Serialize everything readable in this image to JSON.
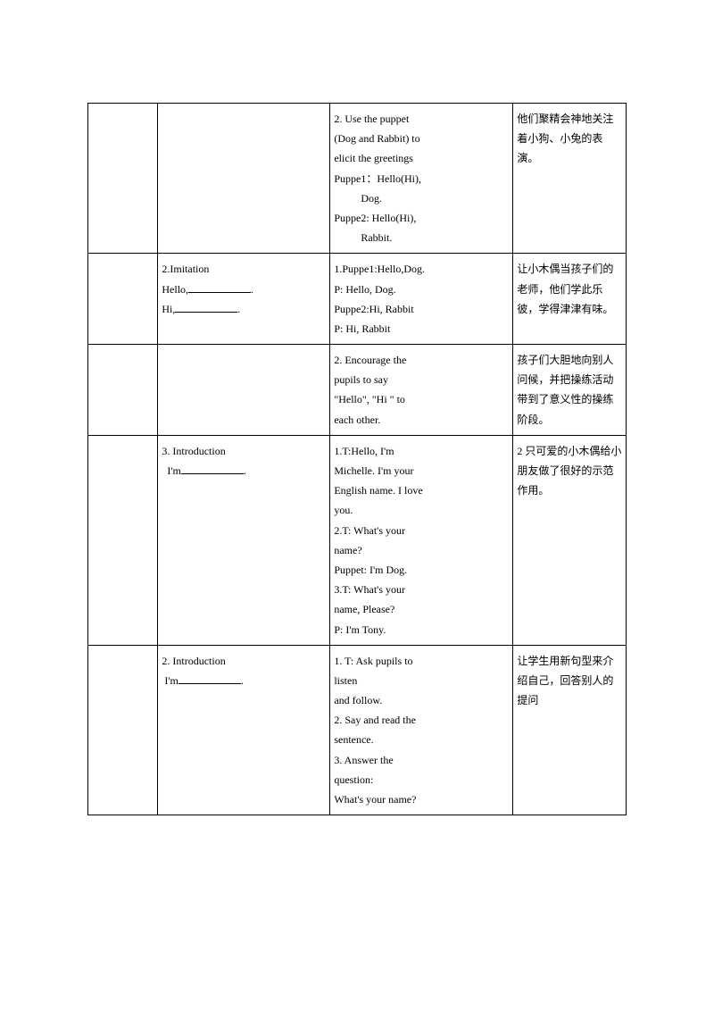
{
  "table": {
    "border_color": "#000000",
    "background_color": "#ffffff",
    "font_size": 12,
    "font_family": "SimSun",
    "column_widths": [
      "13%",
      "32%",
      "34%",
      "21%"
    ],
    "rows": [
      {
        "col1": "",
        "col2": "",
        "col3_lines": [
          "2.  Use the puppet",
          " (Dog  and  Rabbit)  to",
          "elicit the greetings",
          "Puppe1：Hello(Hi),",
          "         Dog.",
          "Puppe2: Hello(Hi),",
          "         Rabbit."
        ],
        "col4": "他们聚精会神地关注着小狗、小兔的表演。"
      },
      {
        "col1": "",
        "col2_lines": [
          "2.Imitation",
          "Hello,___________.",
          "Hi,____________."
        ],
        "col3_lines": [
          " 1.Puppe1:Hello,Dog.",
          "  P:      Hello, Dog.",
          "  Puppe2:Hi, Rabbit",
          "  P:      Hi, Rabbit"
        ],
        "col4": "  让小木偶当孩子们的老师，他们学此乐彼，学得津津有味。"
      },
      {
        "col1": "",
        "col2": "",
        "col3_lines": [
          " 2. Encourage the",
          "   pupils   to    say",
          "  \"Hello\",  \"Hi \" to",
          "   each other."
        ],
        "col4": "  孩子们大胆地向别人问候，并把操练活动带到了意义性的操练阶段。"
      },
      {
        "col1": "",
        "col2_lines": [
          "3. Introduction",
          "  I'm__________."
        ],
        "col3_lines": [
          "1.T:Hello,        I'm",
          "  Michelle.  I'm  your",
          "  English name.  I  love",
          "  you.",
          " 2.T: What's your",
          "    name?",
          "   Puppet: I'm Dog.",
          "3.T: What's your",
          "   name, Please?",
          "  P: I'm Tony."
        ],
        "col4": " 2 只可爱的小木偶给小朋友做了很好的示范作用。"
      },
      {
        "col1": "",
        "col2_lines": [
          "  2.  Introduction",
          " I'm__________."
        ],
        "col3_lines": [
          " 1.  T:  Ask  pupils  to",
          "listen",
          "  and follow.",
          " 2. Say and read the",
          "  sentence.",
          " 3. Answer the",
          "  question:",
          " What's your name?"
        ],
        "col4": "  让学生用新句型来介绍自己，回答别人的提问"
      }
    ]
  }
}
